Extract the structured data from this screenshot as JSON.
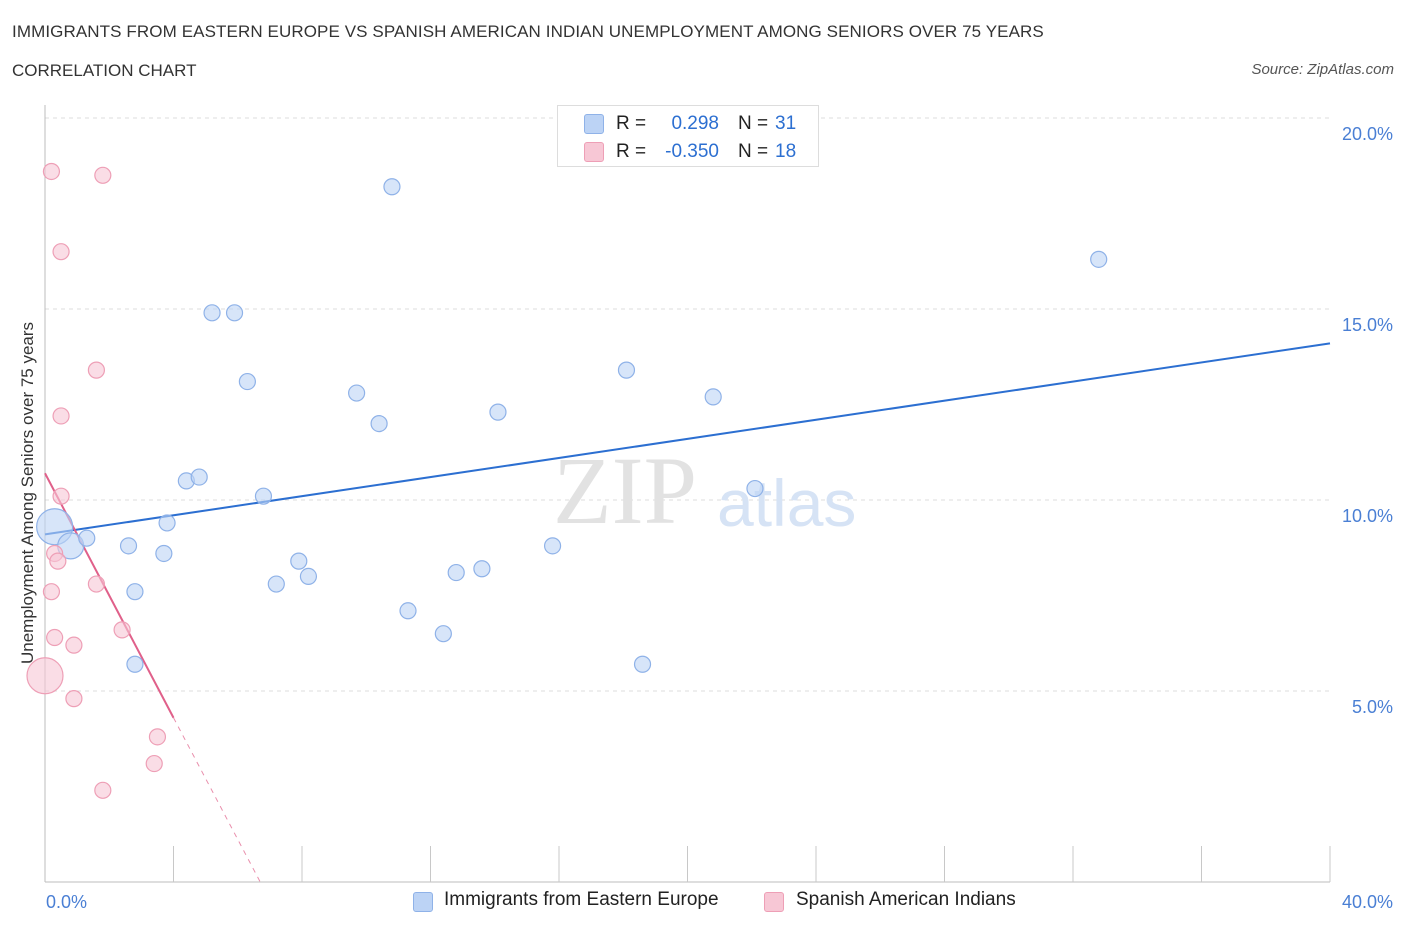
{
  "title": "IMMIGRANTS FROM EASTERN EUROPE VS SPANISH AMERICAN INDIAN UNEMPLOYMENT AMONG SENIORS OVER 75 YEARS",
  "subtitle": "CORRELATION CHART",
  "source": "Source: ZipAtlas.com",
  "watermark": {
    "zip": "ZIP",
    "atlas": "atlas"
  },
  "legend": {
    "rows": [
      {
        "r_label": "R =",
        "r_value": "0.298",
        "n_label": "N =",
        "n_value": "31"
      },
      {
        "r_label": "R =",
        "r_value": "-0.350",
        "n_label": "N =",
        "n_value": "18"
      }
    ]
  },
  "bottom_legend": [
    "Immigrants from Eastern Europe",
    "Spanish American Indians"
  ],
  "colors": {
    "blue_fill": "#bcd3f5",
    "blue_stroke": "#8fb2e8",
    "blue_line": "#2c6fd1",
    "pink_fill": "#f7c7d5",
    "pink_stroke": "#ee9fb6",
    "pink_line": "#e0608a",
    "tick_text": "#4a7fd4"
  },
  "chart_data": {
    "type": "scatter",
    "title": "IMMIGRANTS FROM EASTERN EUROPE VS SPANISH AMERICAN INDIAN UNEMPLOYMENT AMONG SENIORS OVER 75 YEARS",
    "xlabel": "",
    "ylabel": "Unemployment Among Seniors over 75 years",
    "xlim": [
      0,
      40
    ],
    "ylim": [
      0,
      20
    ],
    "x_tick_labels": [
      "0.0%",
      "40.0%"
    ],
    "y_tick_labels": [
      "5.0%",
      "10.0%",
      "15.0%",
      "20.0%"
    ],
    "y_ticks": [
      5,
      10,
      15,
      20
    ],
    "grid": true,
    "series": [
      {
        "name": "Immigrants from Eastern Europe",
        "color": "blue",
        "points": [
          {
            "x": 0.3,
            "y": 9.3,
            "size": "large"
          },
          {
            "x": 0.8,
            "y": 8.8,
            "size": "medium"
          },
          {
            "x": 1.3,
            "y": 9.0
          },
          {
            "x": 2.6,
            "y": 8.8
          },
          {
            "x": 2.8,
            "y": 7.6
          },
          {
            "x": 2.8,
            "y": 5.7
          },
          {
            "x": 3.7,
            "y": 8.6
          },
          {
            "x": 3.8,
            "y": 9.4
          },
          {
            "x": 4.4,
            "y": 10.5
          },
          {
            "x": 4.8,
            "y": 10.6
          },
          {
            "x": 5.2,
            "y": 14.9
          },
          {
            "x": 5.9,
            "y": 14.9
          },
          {
            "x": 6.3,
            "y": 13.1
          },
          {
            "x": 6.8,
            "y": 10.1
          },
          {
            "x": 7.2,
            "y": 7.8
          },
          {
            "x": 7.9,
            "y": 8.4
          },
          {
            "x": 8.2,
            "y": 8.0
          },
          {
            "x": 9.7,
            "y": 12.8
          },
          {
            "x": 10.4,
            "y": 12.0
          },
          {
            "x": 10.8,
            "y": 18.2
          },
          {
            "x": 11.3,
            "y": 7.1
          },
          {
            "x": 12.4,
            "y": 6.5
          },
          {
            "x": 12.8,
            "y": 8.1
          },
          {
            "x": 13.6,
            "y": 8.2
          },
          {
            "x": 14.1,
            "y": 12.3
          },
          {
            "x": 15.8,
            "y": 8.8
          },
          {
            "x": 18.1,
            "y": 13.4
          },
          {
            "x": 18.6,
            "y": 5.7
          },
          {
            "x": 20.8,
            "y": 12.7
          },
          {
            "x": 22.1,
            "y": 10.3
          },
          {
            "x": 32.8,
            "y": 16.3
          }
        ],
        "trend": {
          "x": [
            0,
            40
          ],
          "y": [
            9.1,
            14.1
          ]
        }
      },
      {
        "name": "Spanish American Indians",
        "color": "pink",
        "points": [
          {
            "x": 0.2,
            "y": 18.6
          },
          {
            "x": 1.8,
            "y": 18.5
          },
          {
            "x": 0.5,
            "y": 16.5
          },
          {
            "x": 1.6,
            "y": 13.4
          },
          {
            "x": 0.5,
            "y": 12.2
          },
          {
            "x": 0.5,
            "y": 10.1
          },
          {
            "x": 0.3,
            "y": 8.6
          },
          {
            "x": 0.4,
            "y": 8.4
          },
          {
            "x": 1.6,
            "y": 7.8
          },
          {
            "x": 0.2,
            "y": 7.6
          },
          {
            "x": 2.4,
            "y": 6.6
          },
          {
            "x": 0.3,
            "y": 6.4
          },
          {
            "x": 0.9,
            "y": 6.2
          },
          {
            "x": 0.0,
            "y": 5.4,
            "size": "large"
          },
          {
            "x": 0.9,
            "y": 4.8
          },
          {
            "x": 3.5,
            "y": 3.8
          },
          {
            "x": 3.4,
            "y": 3.1
          },
          {
            "x": 1.8,
            "y": 2.4
          }
        ],
        "trend": {
          "x": [
            0,
            4.0
          ],
          "y": [
            10.7,
            4.3
          ]
        },
        "trend_extension": {
          "x": [
            4.0,
            6.7
          ],
          "y": [
            4.3,
            0
          ]
        }
      }
    ]
  }
}
